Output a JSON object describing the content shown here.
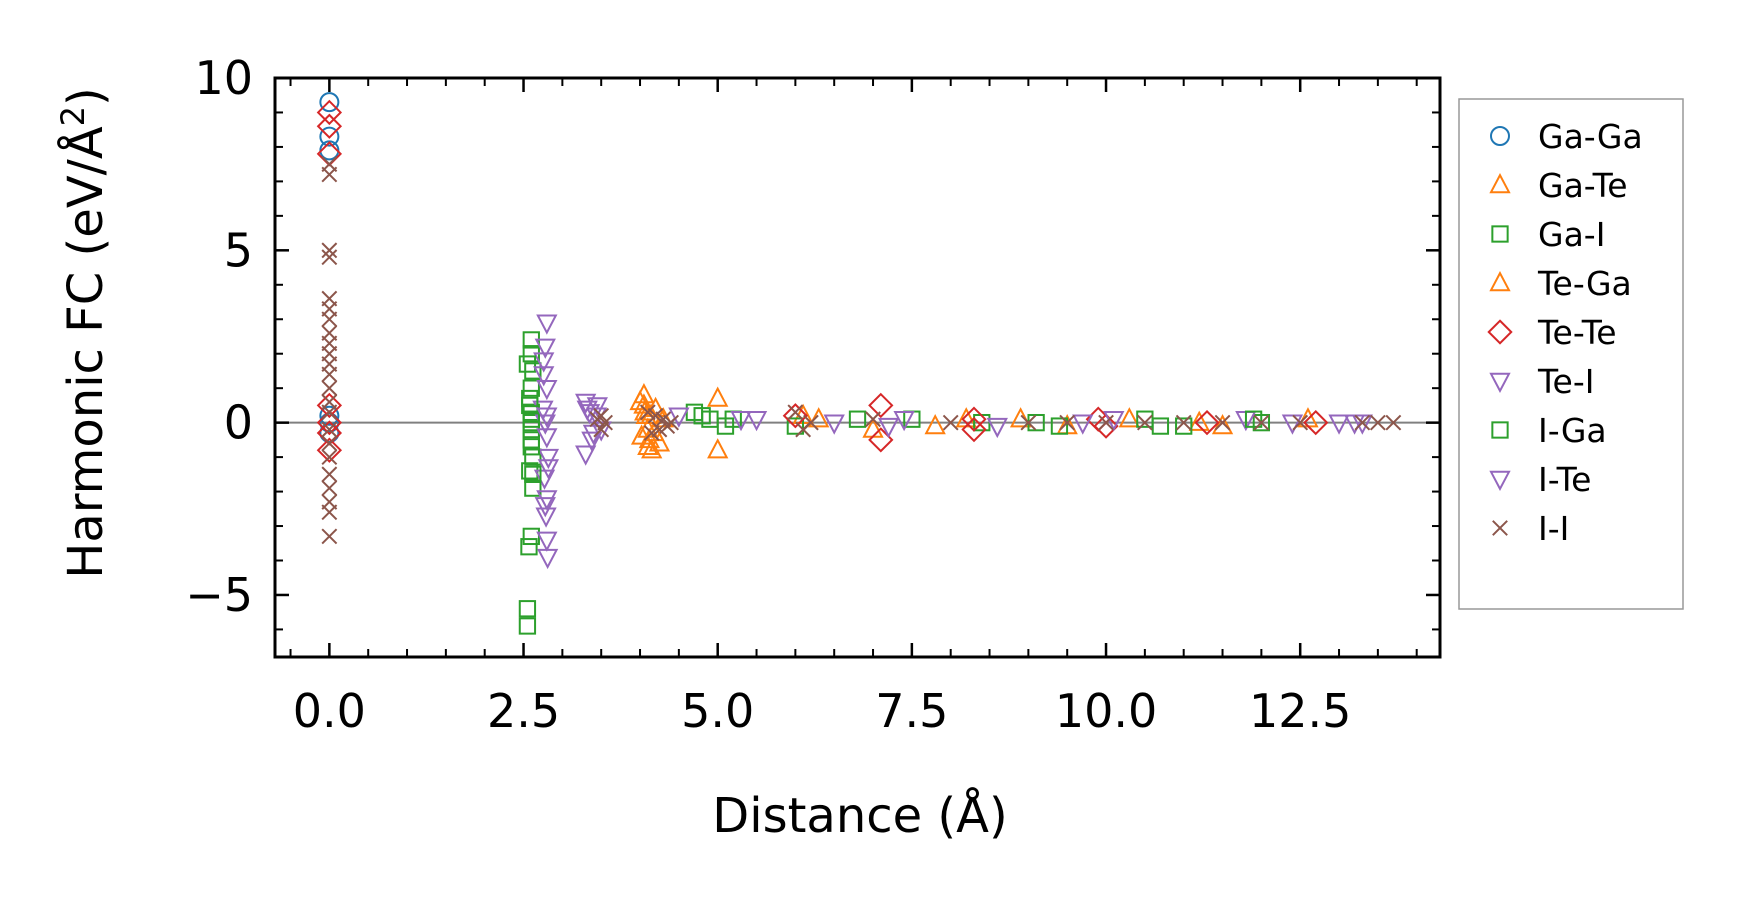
{
  "chart_data": {
    "type": "scatter",
    "title": "",
    "xlabel": "Distance (Å)",
    "ylabel_main": "Harmonic FC (eV/Å",
    "ylabel_sup": "2",
    "ylabel_close": ")",
    "xlim": [
      -0.7,
      14.3
    ],
    "ylim": [
      -6.8,
      10.0
    ],
    "xticks": [
      0.0,
      2.5,
      5.0,
      7.5,
      10.0,
      12.5
    ],
    "xtick_labels": [
      "0.0",
      "2.5",
      "5.0",
      "7.5",
      "10.0",
      "12.5"
    ],
    "yticks": [
      -5,
      0,
      5,
      10
    ],
    "ytick_labels": [
      "−5",
      "0",
      "5",
      "10"
    ],
    "zero_line": true,
    "legend_position": "right outside",
    "colors": {
      "blue": "#1f77b4",
      "orange": "#ff7f0e",
      "green": "#2ca02c",
      "red": "#d62728",
      "purple": "#9467bd",
      "brown": "#8c564b",
      "zero_line": "#808080"
    },
    "series": [
      {
        "name": "Ga-Ga",
        "marker": "circle",
        "color": "#1f77b4",
        "x": [
          0,
          0,
          0,
          0,
          0,
          0
        ],
        "y": [
          9.3,
          8.3,
          7.9,
          0.2,
          0.0,
          -0.3
        ]
      },
      {
        "name": "Ga-Te",
        "marker": "triangle-up",
        "color": "#ff7f0e",
        "x": [
          4.05,
          4.05,
          4.08,
          4.1,
          4.12,
          4.15,
          4.2,
          4.25,
          4.3,
          5.0,
          5.0,
          6.1,
          7.0,
          8.2,
          9.5,
          10.3,
          11.2
        ],
        "y": [
          0.8,
          0.5,
          0.2,
          -0.2,
          -0.5,
          -0.8,
          0.4,
          -0.6,
          0.1,
          0.7,
          -0.8,
          0.2,
          -0.2,
          0.1,
          -0.1,
          0.1,
          0.0
        ]
      },
      {
        "name": "Ga-I",
        "marker": "square",
        "color": "#2ca02c",
        "x": [
          2.55,
          2.55,
          2.57,
          2.6,
          2.6,
          2.6,
          2.62,
          2.6,
          2.58,
          2.6,
          2.6,
          2.62,
          2.58,
          2.62,
          2.6,
          2.6,
          4.7,
          4.9,
          5.2,
          6.0,
          7.5,
          8.4,
          9.4,
          10.5,
          11.0,
          12.0
        ],
        "y": [
          -5.9,
          -5.4,
          -3.6,
          -3.3,
          2.4,
          2.0,
          1.5,
          1.0,
          0.5,
          0.0,
          -0.5,
          -1.0,
          -1.4,
          -1.9,
          -0.2,
          0.3,
          0.3,
          0.1,
          0.1,
          -0.1,
          0.1,
          0.0,
          -0.1,
          0.1,
          -0.1,
          0.0
        ]
      },
      {
        "name": "Te-Ga",
        "marker": "triangle-up",
        "color": "#ff7f0e",
        "x": [
          4.0,
          4.02,
          4.06,
          4.1,
          4.14,
          4.18,
          6.3,
          7.8,
          8.9,
          11.5,
          12.6
        ],
        "y": [
          0.6,
          -0.4,
          0.3,
          -0.7,
          0.2,
          -0.3,
          0.1,
          -0.1,
          0.1,
          -0.1,
          0.1
        ]
      },
      {
        "name": "Te-Te",
        "marker": "diamond",
        "color": "#d62728",
        "x": [
          0,
          0,
          0,
          0,
          0,
          0,
          0,
          6.0,
          7.1,
          7.1,
          8.3,
          8.3,
          9.9,
          10.0,
          11.3,
          12.7
        ],
        "y": [
          9.0,
          8.6,
          7.8,
          0.5,
          -0.3,
          -0.8,
          0.0,
          0.2,
          0.5,
          -0.5,
          0.1,
          -0.2,
          0.1,
          -0.1,
          0.0,
          0.0
        ]
      },
      {
        "name": "Te-I",
        "marker": "triangle-down",
        "color": "#9467bd",
        "x": [
          2.8,
          2.78,
          2.76,
          2.8,
          2.75,
          2.8,
          2.82,
          2.77,
          2.8,
          2.79,
          2.8,
          2.81,
          2.78,
          3.3,
          3.3,
          3.35,
          3.4,
          3.45,
          3.5,
          4.5,
          5.5,
          6.5,
          7.4,
          8.6,
          9.7,
          11.8,
          13.0,
          13.3
        ],
        "y": [
          2.9,
          2.2,
          1.8,
          1.0,
          0.4,
          -0.4,
          -1.0,
          -1.6,
          -2.2,
          -2.7,
          -3.4,
          -3.9,
          0.0,
          0.6,
          -0.9,
          0.3,
          -0.3,
          0.5,
          -0.2,
          0.2,
          0.1,
          0.0,
          0.1,
          -0.1,
          0.0,
          0.1,
          0.0,
          0.0
        ]
      },
      {
        "name": "I-Ga",
        "marker": "square",
        "color": "#2ca02c",
        "x": [
          2.55,
          2.58,
          2.6,
          2.62,
          2.6,
          4.8,
          5.1,
          6.8,
          9.1,
          10.7,
          11.9
        ],
        "y": [
          1.7,
          0.7,
          -0.7,
          -1.5,
          0.1,
          0.2,
          -0.1,
          0.1,
          0.0,
          -0.1,
          0.1
        ]
      },
      {
        "name": "I-Te",
        "marker": "triangle-down",
        "color": "#9467bd",
        "x": [
          2.76,
          2.8,
          2.82,
          2.78,
          3.32,
          3.38,
          3.44,
          5.3,
          7.2,
          10.1,
          12.4,
          13.2
        ],
        "y": [
          1.4,
          0.2,
          -1.3,
          -2.4,
          0.4,
          -0.5,
          0.2,
          0.1,
          -0.1,
          0.1,
          0.0,
          0.0
        ]
      },
      {
        "name": "I-I",
        "marker": "x",
        "color": "#8c564b",
        "x": [
          0,
          0,
          0,
          0,
          0,
          0,
          0,
          0,
          0,
          0,
          0,
          0,
          0,
          0,
          0,
          0,
          0,
          0,
          0,
          0,
          0,
          0,
          0,
          3.5,
          3.5,
          3.55,
          3.45,
          4.1,
          4.15,
          4.2,
          4.25,
          4.3,
          4.35,
          4.4,
          6.0,
          6.1,
          6.2,
          7.0,
          8.0,
          9.0,
          9.5,
          10.0,
          10.5,
          11.0,
          11.5,
          12.0,
          12.5,
          13.3,
          13.5,
          13.7
        ],
        "y": [
          7.5,
          7.2,
          5.0,
          4.8,
          3.6,
          3.3,
          3.0,
          2.6,
          2.3,
          2.0,
          1.7,
          1.4,
          1.0,
          0.6,
          0.3,
          -0.2,
          -0.6,
          -1.0,
          -1.5,
          -1.9,
          -2.3,
          -2.6,
          -3.3,
          0.2,
          -0.2,
          0.0,
          0.1,
          0.3,
          -0.3,
          0.2,
          -0.2,
          0.1,
          -0.1,
          0.0,
          0.3,
          -0.2,
          0.0,
          0.1,
          0.0,
          0.0,
          0.0,
          0.0,
          0.0,
          0.0,
          0.0,
          0.0,
          0.0,
          0.0,
          0.0,
          0.0
        ]
      }
    ]
  }
}
